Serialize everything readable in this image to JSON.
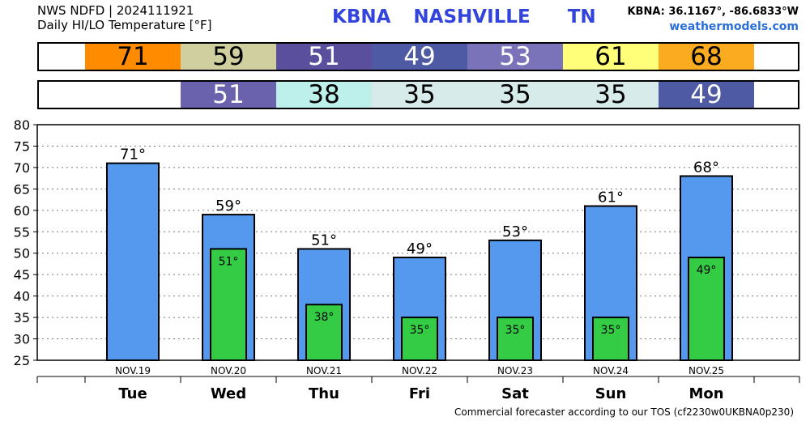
{
  "header": {
    "line1": "NWS NDFD | 2024111921",
    "line2": "Daily HI/LO Temperature [°F]",
    "station": "KBNA",
    "city": "NASHVILLE",
    "state": "TN",
    "coords": "KBNA: 36.1167°, -86.6833°W",
    "site": "weathermodels.com"
  },
  "strips": {
    "hi": [
      {
        "value": "71",
        "color": "#ff8c00",
        "text_color": "#000000"
      },
      {
        "value": "59",
        "color": "#cfcf9f",
        "text_color": "#000000"
      },
      {
        "value": "51",
        "color": "#5a4f9c",
        "text_color": "#ffffff"
      },
      {
        "value": "49",
        "color": "#4e5aa3",
        "text_color": "#ffffff"
      },
      {
        "value": "53",
        "color": "#7b73b9",
        "text_color": "#ffffff"
      },
      {
        "value": "61",
        "color": "#ffff7a",
        "text_color": "#000000"
      },
      {
        "value": "68",
        "color": "#fbab1f",
        "text_color": "#000000"
      }
    ],
    "lo": [
      {
        "value": "",
        "color": "#ffffff",
        "text_color": "#000000"
      },
      {
        "value": "51",
        "color": "#6a62ad",
        "text_color": "#ffffff"
      },
      {
        "value": "38",
        "color": "#bdf0ea",
        "text_color": "#000000"
      },
      {
        "value": "35",
        "color": "#d7ebea",
        "text_color": "#000000"
      },
      {
        "value": "35",
        "color": "#d7ebea",
        "text_color": "#000000"
      },
      {
        "value": "35",
        "color": "#d7ebea",
        "text_color": "#000000"
      },
      {
        "value": "49",
        "color": "#4e5aa3",
        "text_color": "#ffffff"
      }
    ]
  },
  "chart_data": {
    "type": "bar",
    "categories": [
      "NOV.19",
      "NOV.20",
      "NOV.21",
      "NOV.22",
      "NOV.23",
      "NOV.24",
      "NOV.25"
    ],
    "days": [
      "Tue",
      "Wed",
      "Thu",
      "Fri",
      "Sat",
      "Sun",
      "Mon"
    ],
    "series": [
      {
        "values": [
          71,
          59,
          51,
          49,
          53,
          61,
          68
        ],
        "labels": [
          "71°",
          "59°",
          "51°",
          "49°",
          "53°",
          "61°",
          "68°"
        ],
        "color": "#5599ee"
      },
      {
        "values": [
          null,
          51,
          38,
          35,
          35,
          35,
          49
        ],
        "labels": [
          "",
          "51°",
          "38°",
          "35°",
          "35°",
          "35°",
          "49°"
        ],
        "color": "#33cc44"
      }
    ],
    "ylim": [
      25,
      80
    ],
    "yticks": [
      "25",
      "30",
      "35",
      "40",
      "45",
      "50",
      "55",
      "60",
      "65",
      "70",
      "75",
      "80"
    ],
    "grid": true
  },
  "footer": "Commercial forecaster according to our TOS (cf2230w0UKBNA0p230)"
}
